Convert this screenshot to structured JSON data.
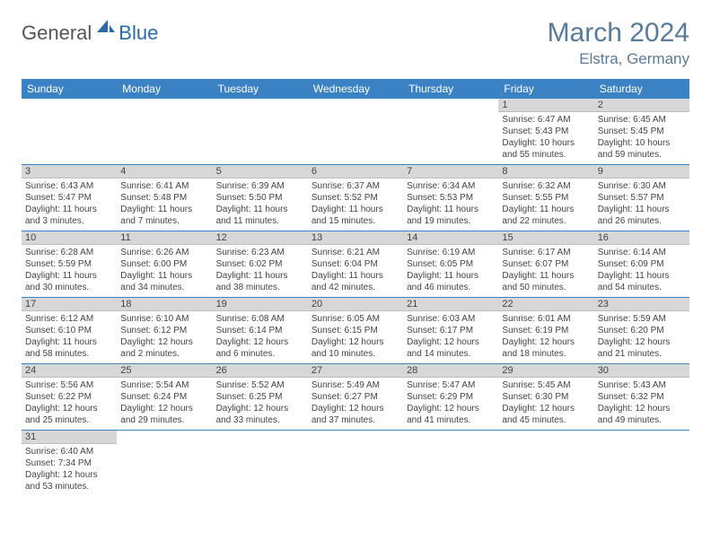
{
  "logo": {
    "general": "General",
    "blue": "Blue"
  },
  "title": "March 2024",
  "location": "Elstra, Germany",
  "colors": {
    "header_bg": "#3b82c4",
    "header_text": "#ffffff",
    "daynum_bg": "#d7d7d7",
    "row_border": "#3b82c4",
    "title_color": "#5a7a99"
  },
  "weekdays": [
    "Sunday",
    "Monday",
    "Tuesday",
    "Wednesday",
    "Thursday",
    "Friday",
    "Saturday"
  ],
  "weeks": [
    [
      null,
      null,
      null,
      null,
      null,
      {
        "n": "1",
        "sunrise": "6:47 AM",
        "sunset": "5:43 PM",
        "daylight": "10 hours and 55 minutes."
      },
      {
        "n": "2",
        "sunrise": "6:45 AM",
        "sunset": "5:45 PM",
        "daylight": "10 hours and 59 minutes."
      }
    ],
    [
      {
        "n": "3",
        "sunrise": "6:43 AM",
        "sunset": "5:47 PM",
        "daylight": "11 hours and 3 minutes."
      },
      {
        "n": "4",
        "sunrise": "6:41 AM",
        "sunset": "5:48 PM",
        "daylight": "11 hours and 7 minutes."
      },
      {
        "n": "5",
        "sunrise": "6:39 AM",
        "sunset": "5:50 PM",
        "daylight": "11 hours and 11 minutes."
      },
      {
        "n": "6",
        "sunrise": "6:37 AM",
        "sunset": "5:52 PM",
        "daylight": "11 hours and 15 minutes."
      },
      {
        "n": "7",
        "sunrise": "6:34 AM",
        "sunset": "5:53 PM",
        "daylight": "11 hours and 19 minutes."
      },
      {
        "n": "8",
        "sunrise": "6:32 AM",
        "sunset": "5:55 PM",
        "daylight": "11 hours and 22 minutes."
      },
      {
        "n": "9",
        "sunrise": "6:30 AM",
        "sunset": "5:57 PM",
        "daylight": "11 hours and 26 minutes."
      }
    ],
    [
      {
        "n": "10",
        "sunrise": "6:28 AM",
        "sunset": "5:59 PM",
        "daylight": "11 hours and 30 minutes."
      },
      {
        "n": "11",
        "sunrise": "6:26 AM",
        "sunset": "6:00 PM",
        "daylight": "11 hours and 34 minutes."
      },
      {
        "n": "12",
        "sunrise": "6:23 AM",
        "sunset": "6:02 PM",
        "daylight": "11 hours and 38 minutes."
      },
      {
        "n": "13",
        "sunrise": "6:21 AM",
        "sunset": "6:04 PM",
        "daylight": "11 hours and 42 minutes."
      },
      {
        "n": "14",
        "sunrise": "6:19 AM",
        "sunset": "6:05 PM",
        "daylight": "11 hours and 46 minutes."
      },
      {
        "n": "15",
        "sunrise": "6:17 AM",
        "sunset": "6:07 PM",
        "daylight": "11 hours and 50 minutes."
      },
      {
        "n": "16",
        "sunrise": "6:14 AM",
        "sunset": "6:09 PM",
        "daylight": "11 hours and 54 minutes."
      }
    ],
    [
      {
        "n": "17",
        "sunrise": "6:12 AM",
        "sunset": "6:10 PM",
        "daylight": "11 hours and 58 minutes."
      },
      {
        "n": "18",
        "sunrise": "6:10 AM",
        "sunset": "6:12 PM",
        "daylight": "12 hours and 2 minutes."
      },
      {
        "n": "19",
        "sunrise": "6:08 AM",
        "sunset": "6:14 PM",
        "daylight": "12 hours and 6 minutes."
      },
      {
        "n": "20",
        "sunrise": "6:05 AM",
        "sunset": "6:15 PM",
        "daylight": "12 hours and 10 minutes."
      },
      {
        "n": "21",
        "sunrise": "6:03 AM",
        "sunset": "6:17 PM",
        "daylight": "12 hours and 14 minutes."
      },
      {
        "n": "22",
        "sunrise": "6:01 AM",
        "sunset": "6:19 PM",
        "daylight": "12 hours and 18 minutes."
      },
      {
        "n": "23",
        "sunrise": "5:59 AM",
        "sunset": "6:20 PM",
        "daylight": "12 hours and 21 minutes."
      }
    ],
    [
      {
        "n": "24",
        "sunrise": "5:56 AM",
        "sunset": "6:22 PM",
        "daylight": "12 hours and 25 minutes."
      },
      {
        "n": "25",
        "sunrise": "5:54 AM",
        "sunset": "6:24 PM",
        "daylight": "12 hours and 29 minutes."
      },
      {
        "n": "26",
        "sunrise": "5:52 AM",
        "sunset": "6:25 PM",
        "daylight": "12 hours and 33 minutes."
      },
      {
        "n": "27",
        "sunrise": "5:49 AM",
        "sunset": "6:27 PM",
        "daylight": "12 hours and 37 minutes."
      },
      {
        "n": "28",
        "sunrise": "5:47 AM",
        "sunset": "6:29 PM",
        "daylight": "12 hours and 41 minutes."
      },
      {
        "n": "29",
        "sunrise": "5:45 AM",
        "sunset": "6:30 PM",
        "daylight": "12 hours and 45 minutes."
      },
      {
        "n": "30",
        "sunrise": "5:43 AM",
        "sunset": "6:32 PM",
        "daylight": "12 hours and 49 minutes."
      }
    ],
    [
      {
        "n": "31",
        "sunrise": "6:40 AM",
        "sunset": "7:34 PM",
        "daylight": "12 hours and 53 minutes."
      },
      null,
      null,
      null,
      null,
      null,
      null
    ]
  ],
  "labels": {
    "sunrise": "Sunrise:",
    "sunset": "Sunset:",
    "daylight": "Daylight:"
  }
}
